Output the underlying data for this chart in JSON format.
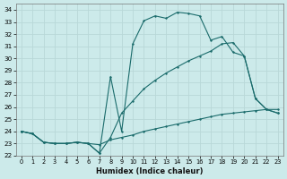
{
  "xlabel": "Humidex (Indice chaleur)",
  "bg_color": "#cceaea",
  "grid_color": "#b8d8d8",
  "line_color": "#1a6b6b",
  "xlim": [
    -0.5,
    23.5
  ],
  "ylim": [
    22,
    34.5
  ],
  "xticks": [
    0,
    1,
    2,
    3,
    4,
    5,
    6,
    7,
    8,
    9,
    10,
    11,
    12,
    13,
    14,
    15,
    16,
    17,
    18,
    19,
    20,
    21,
    22,
    23
  ],
  "yticks": [
    22,
    23,
    24,
    25,
    26,
    27,
    28,
    29,
    30,
    31,
    32,
    33,
    34
  ],
  "line1_x": [
    0,
    1,
    2,
    3,
    4,
    5,
    6,
    7,
    8,
    9,
    10,
    11,
    12,
    13,
    14,
    15,
    16,
    17,
    18,
    19,
    20,
    21,
    22,
    23
  ],
  "line1_y": [
    24.0,
    23.8,
    23.1,
    23.0,
    23.0,
    23.1,
    23.0,
    22.9,
    23.3,
    23.5,
    23.7,
    24.0,
    24.2,
    24.4,
    24.6,
    24.8,
    25.0,
    25.2,
    25.4,
    25.5,
    25.6,
    25.7,
    25.8,
    25.8
  ],
  "line2_x": [
    0,
    1,
    2,
    3,
    4,
    5,
    6,
    7,
    8,
    9,
    10,
    11,
    12,
    13,
    14,
    15,
    16,
    17,
    18,
    19,
    20,
    21,
    22,
    23
  ],
  "line2_y": [
    24.0,
    23.8,
    23.1,
    23.0,
    23.0,
    23.1,
    23.0,
    22.2,
    28.5,
    24.0,
    31.2,
    33.1,
    33.5,
    33.3,
    33.8,
    33.7,
    33.5,
    31.5,
    31.8,
    30.5,
    30.2,
    26.7,
    25.8,
    25.5
  ],
  "line3_x": [
    0,
    1,
    2,
    3,
    4,
    5,
    6,
    7,
    8,
    9,
    10,
    11,
    12,
    13,
    14,
    15,
    16,
    17,
    18,
    19,
    20,
    21,
    22,
    23
  ],
  "line3_y": [
    24.0,
    23.8,
    23.1,
    23.0,
    23.0,
    23.1,
    23.0,
    22.2,
    23.5,
    25.5,
    26.5,
    27.5,
    28.2,
    28.8,
    29.3,
    29.8,
    30.2,
    30.6,
    31.2,
    31.3,
    30.2,
    26.7,
    25.8,
    25.5
  ]
}
